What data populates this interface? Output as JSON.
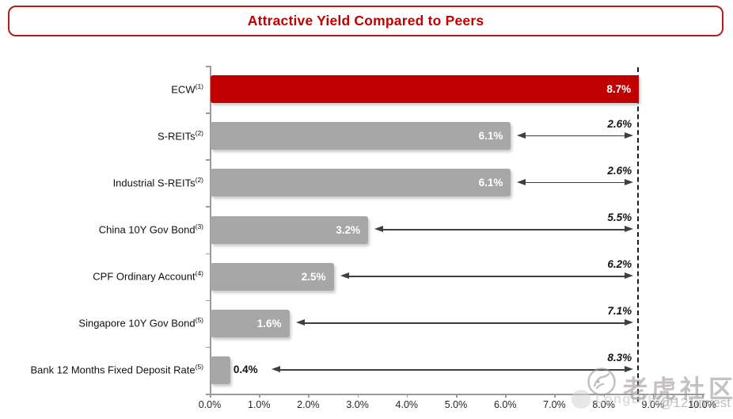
{
  "header": {
    "title": "Attractive Yield Compared to Peers"
  },
  "chart_data": {
    "type": "bar",
    "orientation": "horizontal",
    "title": "Attractive Yield Compared to Peers",
    "categories": [
      "ECW",
      "S-REITs",
      "Industrial S-REITs",
      "China 10Y Gov Bond",
      "CPF Ordinary Account",
      "Singapore 10Y Gov Bond",
      "Bank 12 Months Fixed Deposit Rate"
    ],
    "footnotes": [
      "(1)",
      "(2)",
      "(2)",
      "(3)",
      "(4)",
      "(5)",
      "(5)"
    ],
    "values": [
      8.7,
      6.1,
      6.1,
      3.2,
      2.5,
      1.6,
      0.4
    ],
    "value_labels": [
      "8.7%",
      "6.1%",
      "6.1%",
      "3.2%",
      "2.5%",
      "1.6%",
      "0.4%"
    ],
    "diff_labels": [
      null,
      "2.6%",
      "2.6%",
      "5.5%",
      "6.2%",
      "7.1%",
      "8.3%"
    ],
    "reference_value": 8.7,
    "x_ticks": [
      "0.0%",
      "1.0%",
      "2.0%",
      "3.0%",
      "4.0%",
      "5.0%",
      "6.0%",
      "7.0%",
      "8.0%",
      "9.0%",
      "10.0%"
    ],
    "xlim": [
      0,
      10
    ],
    "grid": false,
    "legend": "none",
    "colors": {
      "highlight": "#c00000",
      "bar": "#a7a7a7",
      "axis": "#9b9b9b",
      "arrow": "#3f3f3f",
      "dashed_line": "#1c1c1c"
    }
  },
  "watermarks": {
    "tiger_community": "老虎社区",
    "longbridge": "LongBridge",
    "handle": "@121invest"
  }
}
